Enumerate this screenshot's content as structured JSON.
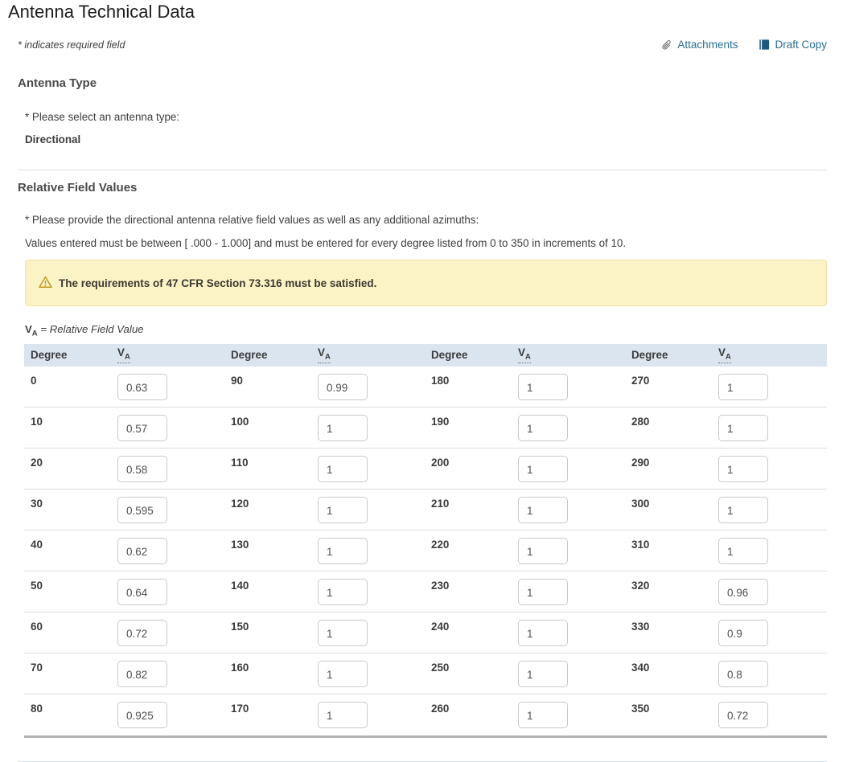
{
  "page": {
    "title": "Antenna Technical Data",
    "required_note": "* indicates required field",
    "links": {
      "attachments": "Attachments",
      "draft_copy": "Draft Copy"
    }
  },
  "antenna_type": {
    "heading": "Antenna Type",
    "prompt": "* Please select an antenna type:",
    "value": "Directional"
  },
  "relative_field": {
    "heading": "Relative Field Values",
    "prompt": "* Please provide the directional antenna relative field values as well as any additional azimuths:",
    "note": "Values entered must be between [ .000 - 1.000] and must be entered for every degree listed from 0 to 350 in increments of 10.",
    "warning": "The requirements of 47 CFR Section 73.316 must be satisfied.",
    "legend": {
      "symbol_main": "V",
      "symbol_sub": "A",
      "rest": " = Relative Field Value"
    },
    "table": {
      "header": {
        "degree": "Degree",
        "va_main": "V",
        "va_sub": "A"
      },
      "rows": [
        [
          {
            "degree": "0",
            "value": "0.63"
          },
          {
            "degree": "90",
            "value": "0.99"
          },
          {
            "degree": "180",
            "value": "1"
          },
          {
            "degree": "270",
            "value": "1"
          }
        ],
        [
          {
            "degree": "10",
            "value": "0.57"
          },
          {
            "degree": "100",
            "value": "1"
          },
          {
            "degree": "190",
            "value": "1"
          },
          {
            "degree": "280",
            "value": "1"
          }
        ],
        [
          {
            "degree": "20",
            "value": "0.58"
          },
          {
            "degree": "110",
            "value": "1"
          },
          {
            "degree": "200",
            "value": "1"
          },
          {
            "degree": "290",
            "value": "1"
          }
        ],
        [
          {
            "degree": "30",
            "value": "0.595"
          },
          {
            "degree": "120",
            "value": "1"
          },
          {
            "degree": "210",
            "value": "1"
          },
          {
            "degree": "300",
            "value": "1"
          }
        ],
        [
          {
            "degree": "40",
            "value": "0.62"
          },
          {
            "degree": "130",
            "value": "1"
          },
          {
            "degree": "220",
            "value": "1"
          },
          {
            "degree": "310",
            "value": "1"
          }
        ],
        [
          {
            "degree": "50",
            "value": "0.64"
          },
          {
            "degree": "140",
            "value": "1"
          },
          {
            "degree": "230",
            "value": "1"
          },
          {
            "degree": "320",
            "value": "0.96"
          }
        ],
        [
          {
            "degree": "60",
            "value": "0.72"
          },
          {
            "degree": "150",
            "value": "1"
          },
          {
            "degree": "240",
            "value": "1"
          },
          {
            "degree": "330",
            "value": "0.9"
          }
        ],
        [
          {
            "degree": "70",
            "value": "0.82"
          },
          {
            "degree": "160",
            "value": "1"
          },
          {
            "degree": "250",
            "value": "1"
          },
          {
            "degree": "340",
            "value": "0.8"
          }
        ],
        [
          {
            "degree": "80",
            "value": "0.925"
          },
          {
            "degree": "170",
            "value": "1"
          },
          {
            "degree": "260",
            "value": "1"
          },
          {
            "degree": "350",
            "value": "0.72"
          }
        ]
      ]
    }
  },
  "colors": {
    "link": "#2b6e93",
    "draft_icon": "#1f587e",
    "paperclip_icon": "#555555",
    "warning_bg": "#fbf3c5",
    "warning_icon": "#bf9a1f",
    "table_header_bg": "#dbe5ef",
    "row_border": "#dddddd",
    "table_bottom_border": "#b1b1b1",
    "input_border": "#c9c9c9",
    "divider": "#d9e3ed"
  }
}
